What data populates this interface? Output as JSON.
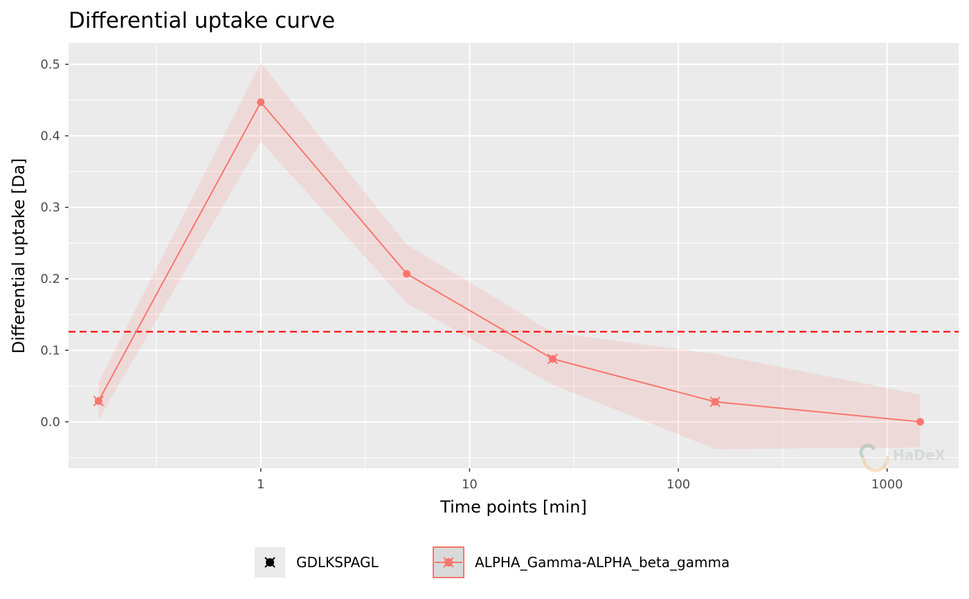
{
  "chart_data": {
    "type": "line",
    "title": "Differential uptake curve",
    "xlabel": "Time points [min]",
    "ylabel": "Differential uptake [Da]",
    "x_scale": "log",
    "xlim": [
      0.12,
      2200
    ],
    "ylim": [
      -0.065,
      0.53
    ],
    "x_ticks": [
      1,
      10,
      100,
      1000
    ],
    "x_tick_labels": [
      "1",
      "10",
      "100",
      "1000"
    ],
    "y_ticks": [
      0.0,
      0.1,
      0.2,
      0.3,
      0.4,
      0.5
    ],
    "y_tick_labels": [
      "0.0",
      "0.1",
      "0.2",
      "0.3",
      "0.4",
      "0.5"
    ],
    "grid": true,
    "threshold_line": {
      "y": 0.126,
      "color": "#ff0000",
      "style": "dashed"
    },
    "series": [
      {
        "name": "GDLKSPAGL",
        "color": "#000000",
        "x": [],
        "y": []
      },
      {
        "name": "ALPHA_Gamma-ALPHA_beta_gamma",
        "color": "#f8766d",
        "x": [
          0.167,
          1,
          5,
          25,
          150,
          1440
        ],
        "y": [
          0.029,
          0.447,
          0.207,
          0.088,
          0.028,
          0.0
        ],
        "ribbon_upper": [
          0.055,
          0.502,
          0.248,
          0.125,
          0.095,
          0.038
        ],
        "ribbon_lower": [
          0.003,
          0.392,
          0.166,
          0.052,
          -0.038,
          -0.036
        ],
        "error_bar_points": [
          0.167,
          25,
          150
        ]
      }
    ],
    "legend_position": "bottom",
    "watermark": "HaDeX"
  }
}
